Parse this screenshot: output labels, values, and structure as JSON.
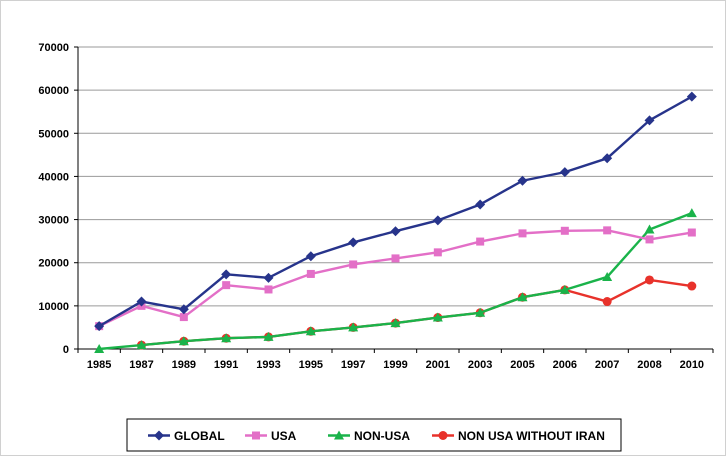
{
  "chart_data": {
    "type": "line",
    "title": "",
    "xlabel": "",
    "ylabel": "",
    "categories": [
      "1985",
      "1987",
      "1989",
      "1991",
      "1993",
      "1995",
      "1997",
      "1999",
      "2001",
      "2003",
      "2005",
      "2006",
      "2007",
      "2008",
      "2010"
    ],
    "ylim": [
      0,
      70000
    ],
    "yticks": [
      "0",
      "10000",
      "20000",
      "30000",
      "40000",
      "50000",
      "60000",
      "70000"
    ],
    "grid": true,
    "legend_position": "bottom",
    "series": [
      {
        "name": "GLOBAL",
        "color": "#27348b",
        "marker": "diamond",
        "values": [
          5300,
          11000,
          9200,
          17300,
          16500,
          21500,
          24700,
          27300,
          29800,
          33500,
          39000,
          41000,
          44200,
          53000,
          58500
        ]
      },
      {
        "name": "USA",
        "color": "#e36fc7",
        "marker": "square",
        "values": [
          5300,
          10000,
          7400,
          14800,
          13800,
          17400,
          19600,
          21000,
          22400,
          24900,
          26800,
          27400,
          27500,
          25400,
          27000
        ]
      },
      {
        "name": "NON-USA",
        "color": "#1ab34a",
        "marker": "triangle",
        "values": [
          0,
          900,
          1800,
          2500,
          2800,
          4100,
          5000,
          6000,
          7300,
          8400,
          12000,
          13700,
          16700,
          27700,
          31500
        ]
      },
      {
        "name": "NON USA WITHOUT IRAN",
        "color": "#e8322b",
        "marker": "circle",
        "values": [
          null,
          900,
          1800,
          2500,
          2800,
          4100,
          5000,
          6000,
          7300,
          8400,
          12000,
          13700,
          11000,
          16000,
          14600
        ]
      }
    ]
  }
}
